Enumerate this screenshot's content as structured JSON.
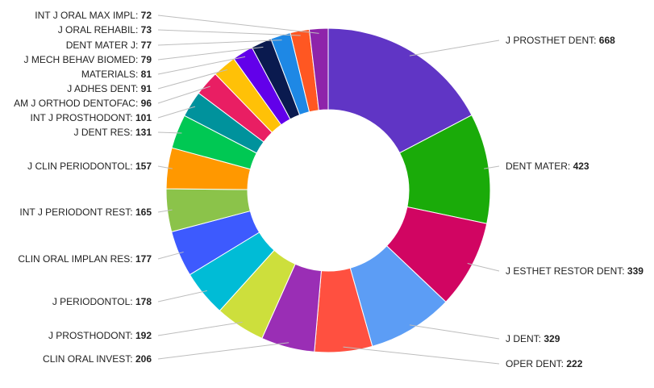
{
  "chart_data": {
    "type": "pie",
    "donut": true,
    "title": "",
    "slices": [
      {
        "label": "J PROSTHET DENT",
        "value": 668,
        "color": "#6035C5"
      },
      {
        "label": "DENT MATER",
        "value": 423,
        "color": "#1AAB09"
      },
      {
        "label": "J ESTHET RESTOR DENT",
        "value": 339,
        "color": "#D10562"
      },
      {
        "label": "J DENT",
        "value": 329,
        "color": "#5C9DF5"
      },
      {
        "label": "OPER DENT",
        "value": 222,
        "color": "#FF5040"
      },
      {
        "label": "CLIN ORAL INVEST",
        "value": 206,
        "color": "#9A2EB5"
      },
      {
        "label": "J PROSTHODONT",
        "value": 192,
        "color": "#CDDF3C"
      },
      {
        "label": "J PERIODONTOL",
        "value": 178,
        "color": "#00BCD6"
      },
      {
        "label": "CLIN ORAL IMPLAN RES",
        "value": 177,
        "color": "#3D5AFE"
      },
      {
        "label": "INT J PERIODONT REST",
        "value": 165,
        "color": "#8BC34A"
      },
      {
        "label": "J CLIN PERIODONTOL",
        "value": 157,
        "color": "#FF9800"
      },
      {
        "label": "J DENT RES",
        "value": 131,
        "color": "#00C853"
      },
      {
        "label": "INT J PROSTHODONT",
        "value": 101,
        "color": "#00929C"
      },
      {
        "label": "AM J ORTHOD DENTOFAC",
        "value": 96,
        "color": "#E91E63"
      },
      {
        "label": "J ADHES DENT",
        "value": 91,
        "color": "#FFC107"
      },
      {
        "label": "MATERIALS",
        "value": 81,
        "color": "#6200EA"
      },
      {
        "label": "J MECH BEHAV BIOMED",
        "value": 79,
        "color": "#0A1A4F"
      },
      {
        "label": "DENT MATER J",
        "value": 77,
        "color": "#1E88E5"
      },
      {
        "label": "J ORAL REHABIL",
        "value": 73,
        "color": "#FF5722"
      },
      {
        "label": "INT J ORAL MAX IMPL",
        "value": 72,
        "color": "#8E24AA"
      }
    ],
    "legend": "none",
    "label_style": "outside labels with leader lines, value in bold"
  }
}
